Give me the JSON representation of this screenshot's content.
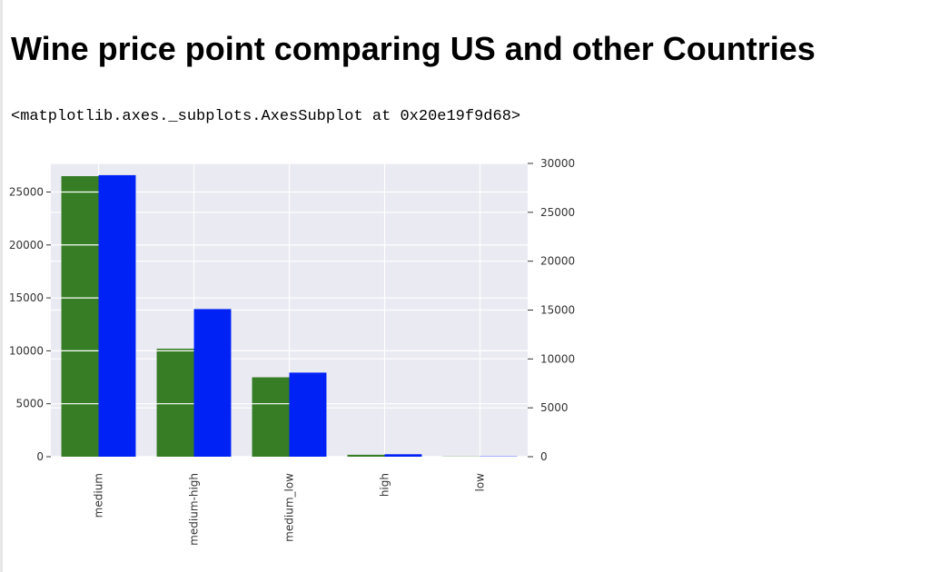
{
  "page": {
    "title": "Wine price point comparing US and other Countries",
    "output_text": "<matplotlib.axes._subplots.AxesSubplot at 0x20e19f9d68>"
  },
  "colors": {
    "plot_background": "#eaeaf2",
    "grid": "#ffffff",
    "series_left": "#367d25",
    "series_right": "#0022f5",
    "tick_text": "#333333"
  },
  "chart_data": {
    "type": "bar",
    "categories": [
      "medium",
      "medium-high",
      "medium_low",
      "high",
      "low"
    ],
    "series": [
      {
        "axis": "left",
        "color": "#367d25",
        "values": [
          26500,
          10200,
          7500,
          180,
          20
        ]
      },
      {
        "axis": "right",
        "color": "#0022f5",
        "values": [
          28800,
          15100,
          8600,
          250,
          30
        ]
      }
    ],
    "left_axis": {
      "ylim": [
        0,
        27700
      ],
      "ticks": [
        0,
        5000,
        10000,
        15000,
        20000,
        25000
      ],
      "tick_labels": [
        "0",
        "5000",
        "10000",
        "15000",
        "20000",
        "25000"
      ]
    },
    "right_axis": {
      "ylim": [
        0,
        30000
      ],
      "ticks": [
        0,
        5000,
        10000,
        15000,
        20000,
        25000,
        30000
      ],
      "tick_labels": [
        "0",
        "5000",
        "10000",
        "15000",
        "20000",
        "25000",
        "30000"
      ]
    },
    "xlabel": "",
    "ylabel": "",
    "grid": true,
    "legend": false
  }
}
